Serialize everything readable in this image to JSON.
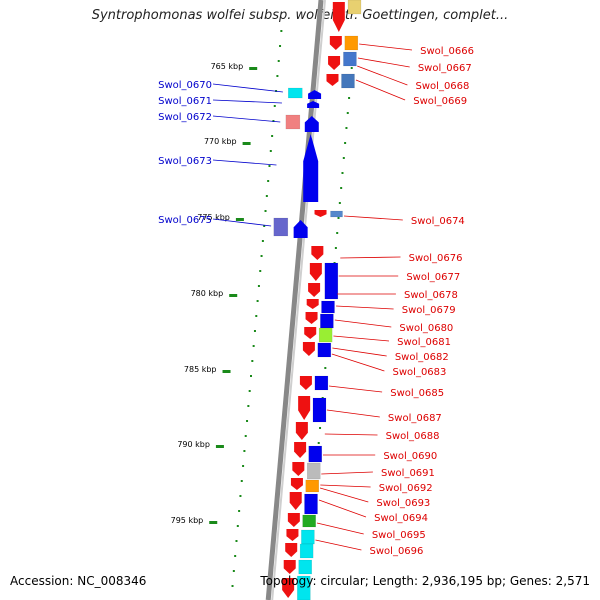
{
  "title": "Syntrophomonas wolfei subsp. wolfei str. Goettingen, complet...",
  "footer": {
    "accession": "Accession: NC_008346",
    "summary": "Topology: circular; Length: 2,936,195 bp; Genes: 2,571"
  },
  "colors": {
    "left_label": "#0000cc",
    "right_label": "#dd0000",
    "tick": "#1a8a1a",
    "backbone": "#888888"
  },
  "kbp_labels": [
    "765 kbp",
    "770 kbp",
    "775 kbp",
    "780 kbp",
    "785 kbp",
    "790 kbp",
    "795 kbp"
  ],
  "left_genes": [
    "Swol_0670",
    "Swol_0671",
    "Swol_0672",
    "Swol_0673",
    "Swol_0675"
  ],
  "right_genes": [
    "Swol_0666",
    "Swol_0667",
    "Swol_0668",
    "Swol_0669",
    "Swol_0674",
    "Swol_0676",
    "Swol_0677",
    "Swol_0678",
    "Swol_0679",
    "Swol_0680",
    "Swol_0681",
    "Swol_0682",
    "Swol_0683",
    "Swol_0685",
    "Swol_0687",
    "Swol_0688",
    "Swol_0690",
    "Swol_0691",
    "Swol_0692",
    "Swol_0693",
    "Swol_0694",
    "Swol_0695",
    "Swol_0696"
  ]
}
